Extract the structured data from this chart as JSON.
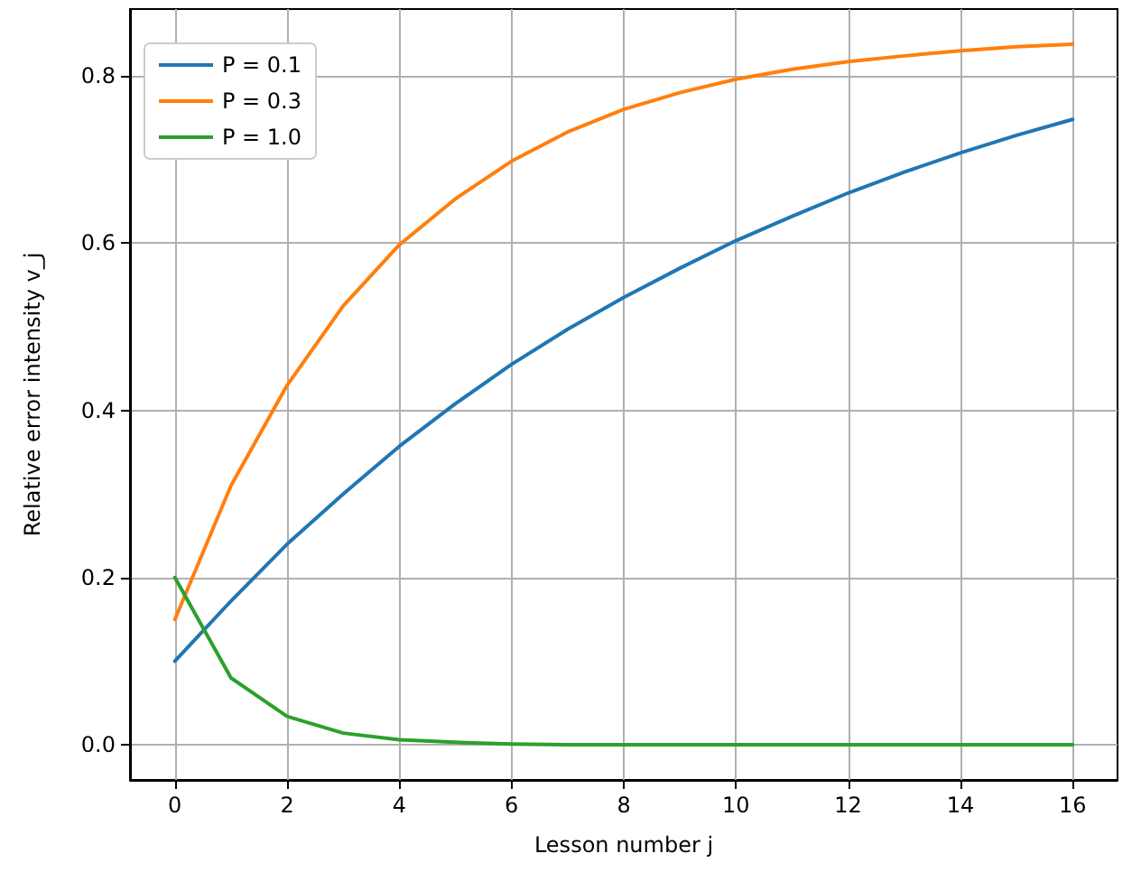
{
  "chart_data": {
    "type": "line",
    "xlabel": "Lesson number j",
    "ylabel": "Relative error intensity v_j",
    "x": [
      0,
      1,
      2,
      3,
      4,
      5,
      6,
      7,
      8,
      9,
      10,
      11,
      12,
      13,
      14,
      15,
      16
    ],
    "series": [
      {
        "name": "P = 0.1",
        "color": "#1f77b4",
        "values": [
          0.1,
          0.172,
          0.24,
          0.3,
          0.357,
          0.408,
          0.455,
          0.497,
          0.535,
          0.57,
          0.603,
          0.632,
          0.66,
          0.685,
          0.708,
          0.729,
          0.748
        ]
      },
      {
        "name": "P = 0.3",
        "color": "#ff7f0e",
        "values": [
          0.15,
          0.31,
          0.43,
          0.525,
          0.598,
          0.653,
          0.698,
          0.733,
          0.76,
          0.78,
          0.796,
          0.808,
          0.817,
          0.824,
          0.83,
          0.835,
          0.838
        ]
      },
      {
        "name": "P = 1.0",
        "color": "#2ca02c",
        "values": [
          0.2,
          0.08,
          0.034,
          0.014,
          0.006,
          0.003,
          0.001,
          0,
          0,
          0,
          0,
          0,
          0,
          0,
          0,
          0,
          0
        ]
      }
    ],
    "xlim": [
      -0.8,
      16.8
    ],
    "xticks": [
      0,
      2,
      4,
      6,
      8,
      10,
      12,
      14,
      16
    ],
    "ylim": [
      -0.042,
      0.88
    ],
    "yticks": [
      {
        "value": 0,
        "label": "0.0"
      },
      0.2,
      0.4,
      0.6,
      0.8
    ],
    "grid": true,
    "legend": "top left",
    "marker": "none",
    "line_style": "solid"
  }
}
